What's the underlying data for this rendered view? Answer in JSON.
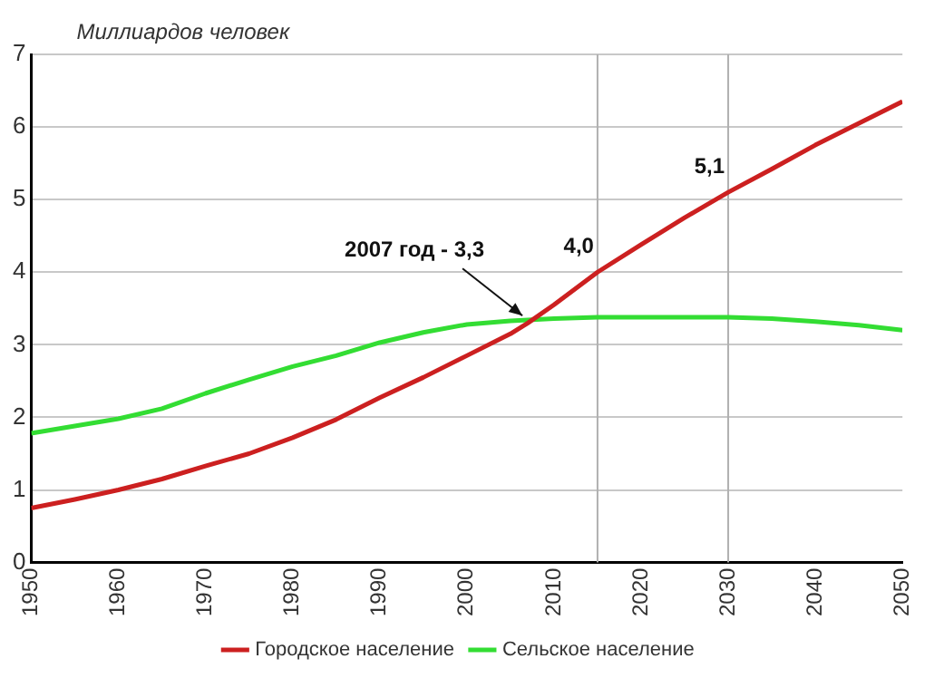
{
  "chart_data": {
    "type": "line",
    "ylabel": "Миллиардов человек",
    "xlim": [
      1950,
      2050
    ],
    "xticks": [
      1950,
      1960,
      1970,
      1980,
      1990,
      2000,
      2010,
      2020,
      2030,
      2040,
      2050
    ],
    "ylim": [
      0,
      7
    ],
    "yticks": [
      0,
      1,
      2,
      3,
      4,
      5,
      6,
      7
    ],
    "grid": "y",
    "legend": "bottom",
    "marker": "none",
    "line_style": "solid",
    "series": [
      {
        "name": "Городское население",
        "color": "#cc2020",
        "x": [
          1950,
          1955,
          1960,
          1965,
          1970,
          1975,
          1980,
          1985,
          1990,
          1995,
          2000,
          2005,
          2007,
          2010,
          2015,
          2020,
          2025,
          2030,
          2035,
          2040,
          2045,
          2050
        ],
        "values": [
          0.75,
          0.87,
          1.0,
          1.15,
          1.33,
          1.5,
          1.72,
          1.97,
          2.27,
          2.55,
          2.85,
          3.15,
          3.3,
          3.55,
          4.0,
          4.38,
          4.75,
          5.1,
          5.42,
          5.75,
          6.05,
          6.35
        ]
      },
      {
        "name": "Сельское население",
        "color": "#33dd33",
        "x": [
          1950,
          1955,
          1960,
          1965,
          1970,
          1975,
          1980,
          1985,
          1990,
          1995,
          2000,
          2005,
          2010,
          2015,
          2020,
          2025,
          2030,
          2035,
          2040,
          2045,
          2050
        ],
        "values": [
          1.78,
          1.88,
          1.98,
          2.12,
          2.33,
          2.52,
          2.7,
          2.85,
          3.03,
          3.17,
          3.28,
          3.33,
          3.36,
          3.38,
          3.38,
          3.38,
          3.38,
          3.36,
          3.32,
          3.27,
          3.2
        ]
      }
    ],
    "ref_lines": [
      {
        "axis": "x",
        "value": 2015,
        "color": "#b0b0b0"
      },
      {
        "axis": "x",
        "value": 2030,
        "color": "#b0b0b0"
      }
    ],
    "annotations": [
      {
        "text": "2007 год - 3,3",
        "x": 2007,
        "y": 3.3
      },
      {
        "text": "4,0",
        "x": 2015,
        "y": 4.0
      },
      {
        "text": "5,1",
        "x": 2030,
        "y": 5.1
      }
    ]
  }
}
